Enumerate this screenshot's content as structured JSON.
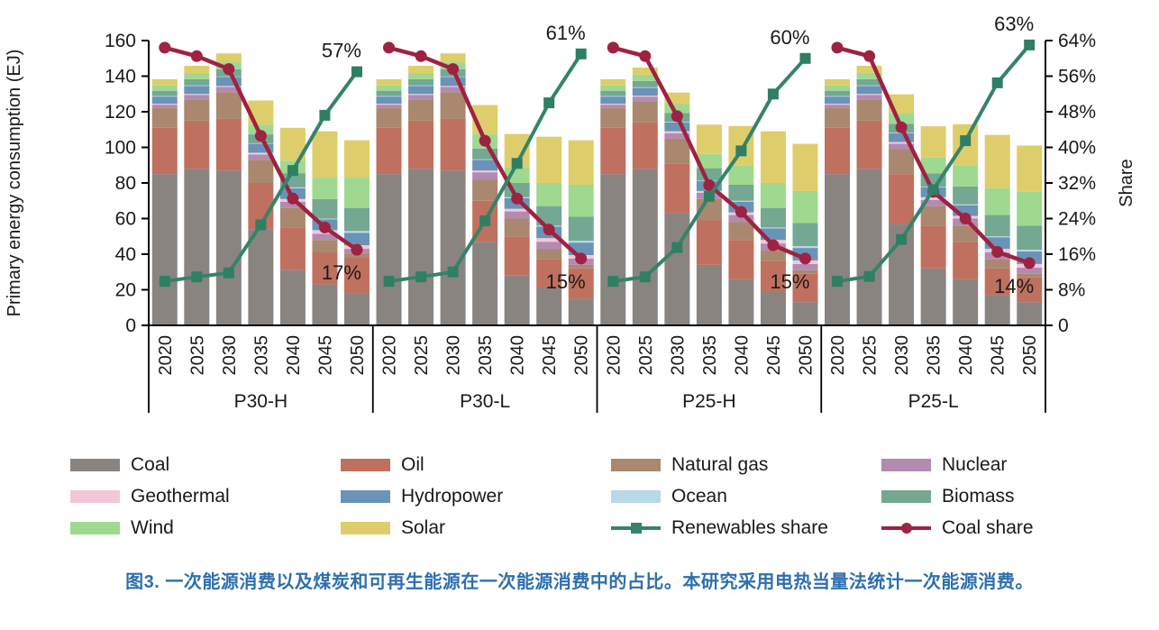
{
  "caption": {
    "text": "图3. 一次能源消费以及煤炭和可再生能源在一次能源消费中的占比。本研究采用电热当量法统计一次能源消费。"
  },
  "legend": {
    "position": "bottom",
    "items": [
      {
        "label": "Coal",
        "type": "swatch",
        "color": "#8a8481"
      },
      {
        "label": "Oil",
        "type": "swatch",
        "color": "#c0705f"
      },
      {
        "label": "Natural gas",
        "type": "swatch",
        "color": "#a9886f"
      },
      {
        "label": "Nuclear",
        "type": "swatch",
        "color": "#b28bb2"
      },
      {
        "label": "Geothermal",
        "type": "swatch",
        "color": "#f3c7d8"
      },
      {
        "label": "Hydropower",
        "type": "swatch",
        "color": "#6a93b7"
      },
      {
        "label": "Ocean",
        "type": "swatch",
        "color": "#b9d8e8"
      },
      {
        "label": "Biomass",
        "type": "swatch",
        "color": "#74a892"
      },
      {
        "label": "Wind",
        "type": "swatch",
        "color": "#9fd98f"
      },
      {
        "label": "Solar",
        "type": "swatch",
        "color": "#decd6b"
      },
      {
        "label": "Renewables share",
        "type": "line-square",
        "color": "#35836b"
      },
      {
        "label": "Coal share",
        "type": "line-circle",
        "color": "#9e2241"
      }
    ]
  },
  "chart_data": {
    "type": "bar",
    "subtype": "stacked bars (primary energy, EJ) with two share lines (%) per scenario group",
    "title": "",
    "ylabel_left": "Primary energy consumption (EJ)",
    "ylabel_right": "Share",
    "ylim_left": [
      0,
      160
    ],
    "yticks_left_labels": [
      "0",
      "20",
      "40",
      "60",
      "80",
      "100",
      "120",
      "140",
      "160"
    ],
    "ylim_right": [
      0,
      64
    ],
    "yticks_right_labels": [
      "0",
      "8%",
      "16%",
      "24%",
      "32%",
      "40%",
      "48%",
      "56%",
      "64%"
    ],
    "grid": false,
    "groups": [
      "P30-H",
      "P30-L",
      "P25-H",
      "P25-L"
    ],
    "years": [
      "2020",
      "2025",
      "2030",
      "2035",
      "2040",
      "2045",
      "2050"
    ],
    "stack_order": [
      "Coal",
      "Oil",
      "Natural gas",
      "Nuclear",
      "Geothermal",
      "Hydropower",
      "Ocean",
      "Biomass",
      "Wind",
      "Solar"
    ],
    "colors": {
      "Coal": "#8a8481",
      "Oil": "#c0705f",
      "Natural gas": "#a9886f",
      "Nuclear": "#b28bb2",
      "Geothermal": "#f3c7d8",
      "Hydropower": "#6a93b7",
      "Ocean": "#b9d8e8",
      "Biomass": "#74a892",
      "Wind": "#9fd98f",
      "Solar": "#decd6b",
      "Renewables share": "#35836b",
      "Renewables share marker": "#2e7f63",
      "Coal share": "#9e2241",
      "axis": "#000000",
      "caption": "#2e6fad"
    },
    "bars_EJ_estimated": {
      "P30-H": {
        "Coal": [
          85,
          88,
          87,
          54,
          31,
          23,
          18
        ],
        "Oil": [
          26,
          27,
          29,
          26,
          24,
          18,
          20
        ],
        "Natural gas": [
          11,
          12,
          15,
          13,
          11,
          7,
          2
        ],
        "Nuclear": [
          2,
          2.5,
          3,
          3,
          3.5,
          3.5,
          3
        ],
        "Geothermal": [
          0.5,
          0.5,
          0.5,
          1,
          1.5,
          2,
          2
        ],
        "Hydropower": [
          4,
          4.5,
          5,
          5,
          6,
          6,
          7
        ],
        "Ocean": [
          0.3,
          0.3,
          0.3,
          0.3,
          0.5,
          0.5,
          1
        ],
        "Biomass": [
          3,
          3.5,
          4,
          5,
          8,
          11,
          13
        ],
        "Wind": [
          3,
          3.5,
          4,
          5.5,
          7,
          12,
          17
        ],
        "Solar": [
          3.5,
          4,
          5,
          13.5,
          18.5,
          26,
          21
        ]
      },
      "P30-L": {
        "Coal": [
          85,
          88,
          87,
          47,
          28,
          21,
          15
        ],
        "Oil": [
          26,
          27,
          29,
          23,
          22,
          16,
          17
        ],
        "Natural gas": [
          11,
          12,
          15,
          12,
          10,
          6,
          2
        ],
        "Nuclear": [
          2,
          2.5,
          3,
          4,
          4,
          4,
          3.5
        ],
        "Geothermal": [
          0.5,
          0.5,
          0.5,
          1,
          1.5,
          2,
          2
        ],
        "Hydropower": [
          4,
          4.5,
          5,
          6,
          6,
          6.5,
          7
        ],
        "Ocean": [
          0.3,
          0.3,
          0.3,
          0.3,
          0.5,
          0.5,
          1
        ],
        "Biomass": [
          3,
          3.5,
          4,
          6,
          8,
          11,
          13.5
        ],
        "Wind": [
          3,
          3.5,
          4,
          8,
          9,
          13,
          18
        ],
        "Solar": [
          3.5,
          4,
          5,
          16.5,
          18.5,
          26,
          25
        ]
      },
      "P25-H": {
        "Coal": [
          85,
          88,
          63,
          34,
          26,
          19,
          13
        ],
        "Oil": [
          26,
          26,
          28,
          25,
          22,
          17,
          16
        ],
        "Natural gas": [
          11,
          12,
          14,
          12,
          10,
          6,
          2
        ],
        "Nuclear": [
          2,
          2.5,
          3,
          3.5,
          4,
          4,
          3.5
        ],
        "Geothermal": [
          0.5,
          0.5,
          1,
          1,
          1.5,
          2,
          2
        ],
        "Hydropower": [
          4,
          4.5,
          5,
          5.5,
          6,
          6.5,
          7
        ],
        "Ocean": [
          0.3,
          0.3,
          0.3,
          0.3,
          0.5,
          0.5,
          1
        ],
        "Biomass": [
          3,
          3.5,
          5,
          7,
          9,
          11,
          13
        ],
        "Wind": [
          3,
          3.5,
          5,
          8,
          11,
          14,
          18
        ],
        "Solar": [
          3.5,
          4,
          6.5,
          16.5,
          22,
          29,
          26.5
        ]
      },
      "P25-L": {
        "Coal": [
          85,
          88,
          57,
          32,
          26,
          17,
          13
        ],
        "Oil": [
          26,
          27,
          28,
          24,
          21,
          15,
          14
        ],
        "Natural gas": [
          11,
          12,
          14,
          11,
          9,
          5,
          2
        ],
        "Nuclear": [
          2,
          2.5,
          3,
          3.5,
          4,
          4,
          3.5
        ],
        "Geothermal": [
          0.5,
          0.5,
          1,
          1.5,
          1.5,
          2,
          2
        ],
        "Hydropower": [
          4,
          4.5,
          5,
          5.5,
          6,
          6.5,
          7
        ],
        "Ocean": [
          0.3,
          0.3,
          0.3,
          0.3,
          0.5,
          0.5,
          1
        ],
        "Biomass": [
          3,
          3.5,
          5,
          7.5,
          10,
          12,
          13.5
        ],
        "Wind": [
          3,
          3.5,
          6,
          9,
          12,
          15,
          19
        ],
        "Solar": [
          3.5,
          4,
          10.5,
          17.5,
          23,
          30,
          26
        ]
      }
    },
    "lines_pct_estimated": {
      "Renewables share": {
        "P30-H": [
          9.9,
          10.9,
          11.8,
          22.6,
          34.8,
          47.2,
          57
        ],
        "P30-L": [
          9.9,
          10.9,
          12.0,
          23.5,
          36.4,
          50.0,
          61
        ],
        "P25-H": [
          9.9,
          10.9,
          17.5,
          29.0,
          39.2,
          52.0,
          60
        ],
        "P25-L": [
          9.9,
          11.0,
          19.3,
          30.5,
          41.5,
          54.5,
          63
        ]
      },
      "Coal share": {
        "P30-H": [
          62.4,
          60.5,
          57.6,
          42.6,
          28.5,
          22.0,
          17
        ],
        "P30-L": [
          62.4,
          60.5,
          57.6,
          41.5,
          28.5,
          21.5,
          15
        ],
        "P25-H": [
          62.4,
          60.5,
          47.0,
          31.5,
          25.5,
          18.0,
          15
        ],
        "P25-L": [
          62.4,
          60.5,
          44.5,
          30.0,
          24.0,
          16.5,
          14
        ]
      }
    },
    "annotations": {
      "renewables_2050": [
        "57%",
        "61%",
        "60%",
        "63%"
      ],
      "coal_2050": [
        "17%",
        "15%",
        "15%",
        "14%"
      ]
    }
  }
}
